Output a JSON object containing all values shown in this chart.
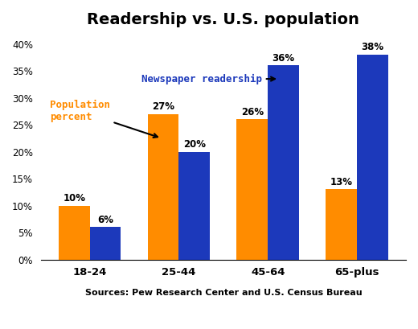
{
  "title": "Readership vs. U.S. population",
  "categories": [
    "18-24",
    "25-44",
    "45-64",
    "65-plus"
  ],
  "population_values": [
    10,
    27,
    26,
    13
  ],
  "readership_values": [
    6,
    20,
    36,
    38
  ],
  "population_color": "#FF8C00",
  "readership_color": "#1C39BB",
  "bar_width": 0.35,
  "ylim": [
    0,
    42
  ],
  "yticks": [
    0,
    5,
    10,
    15,
    20,
    25,
    30,
    35,
    40
  ],
  "ytick_labels": [
    "0%",
    "5%",
    "10%",
    "15%",
    "20%",
    "25%",
    "30%",
    "35%",
    "40%"
  ],
  "source_text": "Sources: Pew Research Center and U.S. Census Bureau",
  "annotation_newspaper": "Newspaper readership",
  "annotation_population": "Population\npercent",
  "background_color": "#ffffff"
}
